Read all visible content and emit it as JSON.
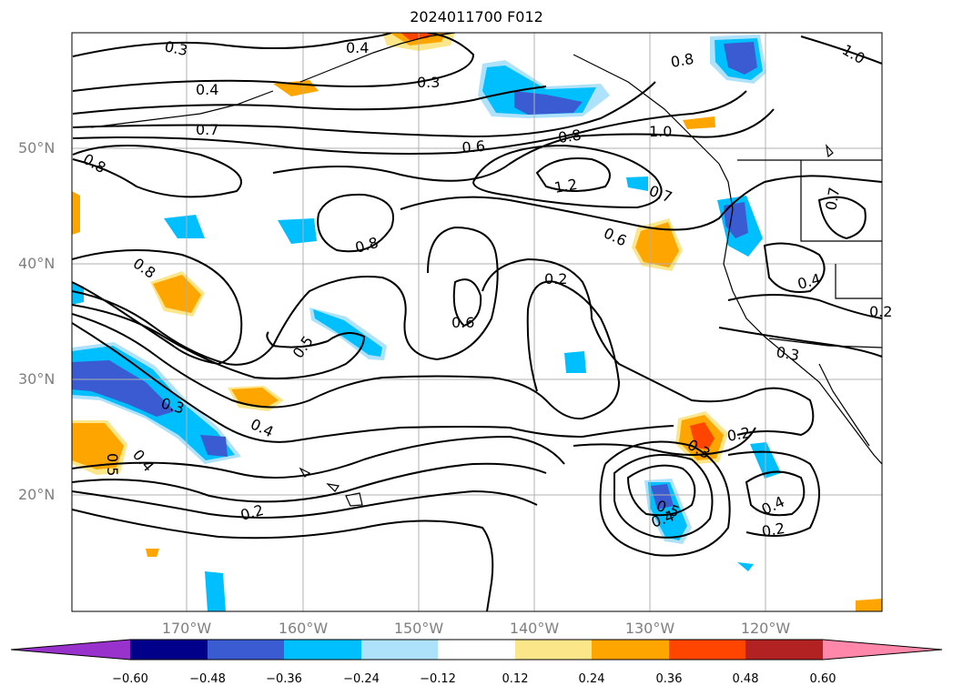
{
  "title": "2024011700 F012",
  "lat_labels": [
    {
      "label": "50°N",
      "lat": 50
    },
    {
      "label": "40°N",
      "lat": 40
    },
    {
      "label": "30°N",
      "lat": 30
    },
    {
      "label": "20°N",
      "lat": 20
    }
  ],
  "lon_labels": [
    {
      "label": "170°W",
      "lon": -170
    },
    {
      "label": "160°W",
      "lon": -160
    },
    {
      "label": "150°W",
      "lon": -150
    },
    {
      "label": "140°W",
      "lon": -140
    },
    {
      "label": "130°W",
      "lon": -130
    },
    {
      "label": "120°W",
      "lon": -120
    }
  ],
  "colorbar": {
    "colors": [
      "#9932cc",
      "#00008b",
      "#3a5bd1",
      "#00bfff",
      "#aee2fa",
      "#ffffff",
      "#fbe68a",
      "#ffa500",
      "#ff4500",
      "#b22222",
      "#ff88aa"
    ],
    "ticks": [
      "−0.60",
      "−0.48",
      "−0.36",
      "−0.24",
      "−0.12",
      "0.12",
      "0.24",
      "0.36",
      "0.48",
      "0.60"
    ]
  },
  "contour_labels": [
    "0.3",
    "0.4",
    "0.3",
    "1.0",
    "0.8",
    "0.4",
    "0.7",
    "0.6",
    "0.8",
    "1.0",
    "0.8",
    "1.2",
    "0.7",
    "0.7",
    "0.8",
    "0.6",
    "0.8",
    "0.2",
    "0.6",
    "0.4",
    "0.5",
    "0.3",
    "0.3",
    "0.4",
    "0.5",
    "0.4",
    "0.3",
    "0.2",
    "0.5",
    "0.4",
    "0.2",
    "0.4",
    "0.2",
    "0.2"
  ],
  "icons": {
    "colorbar_extend": "triangle-arrow"
  }
}
